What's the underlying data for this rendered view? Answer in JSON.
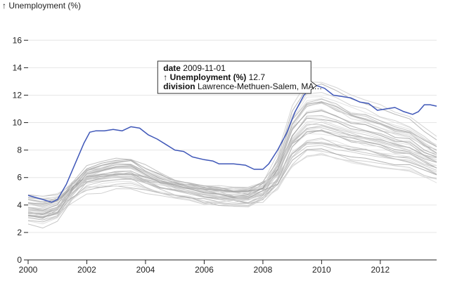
{
  "chart_data": {
    "type": "line",
    "ylabel": "↑ Unemployment (%)",
    "xlabel": "",
    "xlim": [
      2000.0,
      2013.92
    ],
    "ylim": [
      0,
      17.6
    ],
    "x_ticks": [
      {
        "value": 2000,
        "label": "2000"
      },
      {
        "value": 2002,
        "label": "2002"
      },
      {
        "value": 2004,
        "label": "2004"
      },
      {
        "value": 2006,
        "label": "2006"
      },
      {
        "value": 2008,
        "label": "2008"
      },
      {
        "value": 2010,
        "label": "2010"
      },
      {
        "value": 2012,
        "label": "2012"
      }
    ],
    "y_ticks": [
      {
        "value": 0,
        "label": "0"
      },
      {
        "value": 2,
        "label": "2"
      },
      {
        "value": 4,
        "label": "4"
      },
      {
        "value": 6,
        "label": "6"
      },
      {
        "value": 8,
        "label": "8"
      },
      {
        "value": 10,
        "label": "10"
      },
      {
        "value": 12,
        "label": "12"
      },
      {
        "value": 14,
        "label": "14"
      },
      {
        "value": 16,
        "label": "16"
      }
    ],
    "grid": "horizontal",
    "background_color": "#bdbdbd",
    "highlight_color": "#3f57b8",
    "highlight": {
      "name": "Lawrence-Methuen-Salem, MA…",
      "points": [
        [
          2000,
          4.7
        ],
        [
          2000.5,
          4.4
        ],
        [
          2000.8,
          4.2
        ],
        [
          2001.0,
          4.4
        ],
        [
          2001.3,
          5.5
        ],
        [
          2001.6,
          7.0
        ],
        [
          2001.9,
          8.5
        ],
        [
          2002.1,
          9.3
        ],
        [
          2002.3,
          9.4
        ],
        [
          2002.6,
          9.4
        ],
        [
          2002.9,
          9.5
        ],
        [
          2003.2,
          9.4
        ],
        [
          2003.5,
          9.7
        ],
        [
          2003.8,
          9.6
        ],
        [
          2004.1,
          9.1
        ],
        [
          2004.4,
          8.8
        ],
        [
          2004.7,
          8.4
        ],
        [
          2005.0,
          8.0
        ],
        [
          2005.3,
          7.9
        ],
        [
          2005.6,
          7.5
        ],
        [
          2006.0,
          7.3
        ],
        [
          2006.3,
          7.2
        ],
        [
          2006.5,
          7.0
        ],
        [
          2007.0,
          7.0
        ],
        [
          2007.4,
          6.9
        ],
        [
          2007.7,
          6.6
        ],
        [
          2008.0,
          6.6
        ],
        [
          2008.2,
          7.0
        ],
        [
          2008.5,
          8.0
        ],
        [
          2008.8,
          9.2
        ],
        [
          2009.1,
          10.8
        ],
        [
          2009.4,
          12.0
        ],
        [
          2009.7,
          12.6
        ],
        [
          2009.83,
          12.7
        ],
        [
          2010.1,
          12.5
        ],
        [
          2010.4,
          12.0
        ],
        [
          2010.7,
          11.9
        ],
        [
          2011.0,
          11.8
        ],
        [
          2011.3,
          11.5
        ],
        [
          2011.6,
          11.4
        ],
        [
          2011.9,
          10.9
        ],
        [
          2012.2,
          11.0
        ],
        [
          2012.5,
          11.1
        ],
        [
          2012.8,
          10.8
        ],
        [
          2013.1,
          10.6
        ],
        [
          2013.3,
          10.8
        ],
        [
          2013.5,
          11.3
        ],
        [
          2013.7,
          11.3
        ],
        [
          2013.92,
          11.2
        ]
      ]
    },
    "background_series_count": 40,
    "tooltip": {
      "rows": [
        {
          "key": "date",
          "value": "2009-11-01"
        },
        {
          "key": "↑ Unemployment (%)",
          "value": "12.7"
        },
        {
          "key": "division",
          "value": "Lawrence-Methuen-Salem, MA…"
        }
      ],
      "anchor": {
        "x": 2009.83,
        "y": 12.7
      }
    }
  }
}
